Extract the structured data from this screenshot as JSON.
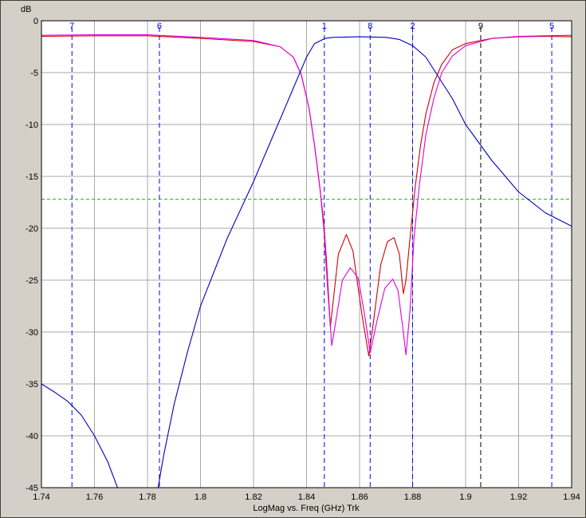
{
  "chart_data": {
    "type": "line",
    "unit_label": "dB",
    "xlabel": "LogMag vs. Freq (GHz)  Trk",
    "xlim": [
      1.74,
      1.94
    ],
    "ylim": [
      -45,
      0
    ],
    "x_ticks": [
      "1.74",
      "1.76",
      "1.78",
      "1.8",
      "1.82",
      "1.84",
      "1.86",
      "1.88",
      "1.9",
      "1.92",
      "1.94"
    ],
    "y_ticks": [
      "0",
      "-5",
      "-10",
      "-15",
      "-20",
      "-25",
      "-30",
      "-35",
      "-40",
      "-45"
    ],
    "grid": true,
    "limit_line": {
      "y": -17.2,
      "color": "#00c000"
    },
    "markers": [
      {
        "label": "7",
        "x": 1.7515,
        "color": "#0000ff"
      },
      {
        "label": "6",
        "x": 1.7845,
        "color": "#0000ff"
      },
      {
        "label": "1",
        "x": 1.8467,
        "color": "#0000ff"
      },
      {
        "label": "8",
        "x": 1.864,
        "color": "#0000ff"
      },
      {
        "label": "2",
        "x": 1.88,
        "color": "#0000ff"
      },
      {
        "label": "9",
        "x": 1.9057,
        "color": "#000000"
      },
      {
        "label": "5",
        "x": 1.9325,
        "color": "#0000ff"
      }
    ],
    "series": [
      {
        "color": "#d00000",
        "x": [
          1.74,
          1.76,
          1.78,
          1.8,
          1.82,
          1.83,
          1.835,
          1.838,
          1.841,
          1.843,
          1.845,
          1.8465,
          1.8475,
          1.849,
          1.8505,
          1.852,
          1.855,
          1.8575,
          1.861,
          1.8635,
          1.865,
          1.868,
          1.8705,
          1.873,
          1.875,
          1.8765,
          1.8775,
          1.879,
          1.881,
          1.883,
          1.885,
          1.888,
          1.891,
          1.895,
          1.9,
          1.91,
          1.92,
          1.93,
          1.94
        ],
        "y": [
          -1.5,
          -1.45,
          -1.45,
          -1.7,
          -2.0,
          -2.5,
          -3.5,
          -5.2,
          -8.5,
          -12,
          -16,
          -19.5,
          -23,
          -29.5,
          -26,
          -22.5,
          -20.6,
          -22.2,
          -28.5,
          -32.3,
          -29.5,
          -23.5,
          -21.3,
          -20.9,
          -22.5,
          -26.3,
          -25,
          -21,
          -16,
          -12,
          -9,
          -6,
          -4.2,
          -2.8,
          -2.2,
          -1.7,
          -1.55,
          -1.5,
          -1.55
        ]
      },
      {
        "color": "#e000e0",
        "x": [
          1.74,
          1.76,
          1.78,
          1.8,
          1.82,
          1.83,
          1.835,
          1.838,
          1.841,
          1.843,
          1.845,
          1.8465,
          1.848,
          1.8495,
          1.851,
          1.8535,
          1.8565,
          1.8595,
          1.862,
          1.864,
          1.8665,
          1.8695,
          1.8725,
          1.8745,
          1.8765,
          1.8775,
          1.879,
          1.8805,
          1.8825,
          1.885,
          1.888,
          1.891,
          1.895,
          1.9,
          1.91,
          1.92,
          1.93,
          1.94
        ],
        "y": [
          -1.4,
          -1.35,
          -1.35,
          -1.6,
          -1.9,
          -2.5,
          -3.5,
          -5.2,
          -8.5,
          -12,
          -16,
          -20,
          -26,
          -31.3,
          -29,
          -25,
          -23.8,
          -24.8,
          -28.5,
          -32,
          -29,
          -25.8,
          -24.9,
          -26,
          -30,
          -32.2,
          -28,
          -21,
          -16,
          -11,
          -7.5,
          -5,
          -3.4,
          -2.4,
          -1.7,
          -1.5,
          -1.45,
          -1.4
        ]
      },
      {
        "color": "#0000c0",
        "x": [
          1.74,
          1.745,
          1.75,
          1.755,
          1.76,
          1.765,
          1.769,
          1.7705,
          1.772,
          1.775,
          1.778,
          1.781,
          1.783,
          1.784,
          1.786,
          1.79,
          1.795,
          1.8,
          1.81,
          1.82,
          1.83,
          1.835,
          1.84,
          1.843,
          1.847,
          1.85,
          1.86,
          1.87,
          1.875,
          1.88,
          1.885,
          1.89,
          1.895,
          1.9,
          1.91,
          1.92,
          1.93,
          1.94
        ],
        "y": [
          -35,
          -35.8,
          -36.7,
          -38,
          -40,
          -42.5,
          -45.2,
          -46,
          -47,
          -48,
          -48,
          -47,
          -46,
          -45,
          -42,
          -37,
          -32,
          -27.5,
          -21,
          -15.5,
          -9.5,
          -6.5,
          -3.5,
          -2.2,
          -1.7,
          -1.6,
          -1.55,
          -1.6,
          -1.8,
          -2.4,
          -3.5,
          -5.5,
          -7.5,
          -10,
          -13.5,
          -16.5,
          -18.5,
          -19.8
        ]
      }
    ]
  }
}
